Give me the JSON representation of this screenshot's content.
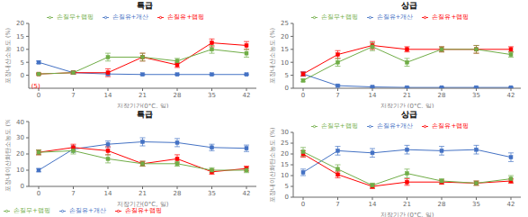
{
  "chart_data": [
    {
      "type": "line",
      "title": "특급",
      "x_label": "저장기간(0°C, 일)",
      "y_label": "포장내산소농도 (%)",
      "x": [
        0,
        7,
        14,
        21,
        28,
        35,
        42
      ],
      "xlim": [
        -2,
        44
      ],
      "xticks": [
        0,
        7,
        14,
        21,
        28,
        35,
        42
      ],
      "ylim": [
        -5,
        20
      ],
      "yticks": [
        0,
        5,
        10,
        15,
        20
      ],
      "grid": false,
      "legend": "upper center",
      "marker": "square",
      "annotations": [
        {
          "text": "(5)",
          "x": -1.5,
          "y": -4,
          "color": "#FF0000"
        }
      ],
      "series": [
        {
          "name": "손질유+개산",
          "color": "#4472C4",
          "values": [
            5,
            1,
            0.5,
            0.3,
            0.3,
            0.3,
            0.3
          ],
          "yerr": [
            0.5,
            0.5,
            0.3,
            0.2,
            0.2,
            0.2,
            0.2
          ]
        },
        {
          "name": "손질유+랩핑",
          "color": "#FF0000",
          "values": [
            0.5,
            1,
            1,
            7,
            4,
            12.5,
            11.5
          ],
          "yerr": [
            0.3,
            0.5,
            1.5,
            1.5,
            1.0,
            1.5,
            1.5
          ]
        },
        {
          "name": "손질무+랩핑",
          "color": "#70AD47",
          "values": [
            0.5,
            1,
            7,
            7,
            5.5,
            10,
            8.5
          ],
          "yerr": [
            0.3,
            0.5,
            1.5,
            1.5,
            1.0,
            1.5,
            1.5
          ]
        }
      ]
    },
    {
      "type": "line",
      "title": "상급",
      "x_label": "저장기간 (0°C, 일)",
      "y_label": "포장내산소농도 (%)",
      "x": [
        0,
        7,
        14,
        21,
        28,
        35,
        42
      ],
      "xlim": [
        -2,
        44
      ],
      "xticks": [
        0,
        7,
        14,
        21,
        28,
        35,
        42
      ],
      "ylim": [
        0,
        25
      ],
      "yticks": [
        0,
        5,
        10,
        15,
        20,
        25
      ],
      "grid": false,
      "legend": "upper center",
      "marker": "square",
      "series": [
        {
          "name": "손질유+개산",
          "color": "#4472C4",
          "values": [
            5.5,
            1,
            0.5,
            0.3,
            0.3,
            0.3,
            0.3
          ],
          "yerr": [
            0.8,
            0.3,
            0.2,
            0.2,
            0.2,
            0.2,
            0.2
          ]
        },
        {
          "name": "손질유+랩핑",
          "color": "#FF0000",
          "values": [
            5.5,
            13,
            16.5,
            15,
            15,
            15,
            15
          ],
          "yerr": [
            0.8,
            1.5,
            1.5,
            1.0,
            1.0,
            1.5,
            1.0
          ]
        },
        {
          "name": "손질무+랩핑",
          "color": "#70AD47",
          "values": [
            3,
            10,
            16,
            10,
            15,
            15,
            13
          ],
          "yerr": [
            0.5,
            1.5,
            1.5,
            1.5,
            1.0,
            1.5,
            1.0
          ]
        }
      ]
    },
    {
      "type": "line",
      "title": "특급",
      "x_label": "저장기간(0°C, 일)",
      "y_label": "포장내이산화탄소농도 (%)",
      "x": [
        0,
        7,
        14,
        21,
        28,
        35,
        42
      ],
      "xlim": [
        -2,
        44
      ],
      "xticks": [
        0,
        7,
        14,
        21,
        28,
        35,
        42
      ],
      "ylim": [
        0,
        40
      ],
      "yticks": [
        0,
        10,
        20,
        30,
        40
      ],
      "grid": false,
      "legend": "lower left",
      "marker": "square",
      "series": [
        {
          "name": "손질유+개산",
          "color": "#4472C4",
          "values": [
            10,
            23,
            26,
            27.5,
            27,
            24,
            23.5
          ],
          "yerr": [
            1.0,
            2.0,
            2.0,
            2.5,
            2.5,
            2.0,
            2.0
          ]
        },
        {
          "name": "손질유+랩핑",
          "color": "#FF0000",
          "values": [
            21,
            24,
            22,
            14,
            17,
            9,
            11
          ],
          "yerr": [
            1.5,
            2.0,
            2.5,
            1.5,
            2.5,
            1.5,
            1.5
          ]
        },
        {
          "name": "손질무+랩핑",
          "color": "#70AD47",
          "values": [
            21,
            22,
            17,
            14,
            14,
            10,
            10
          ],
          "yerr": [
            1.5,
            2.0,
            2.5,
            1.5,
            1.5,
            1.5,
            1.5
          ]
        }
      ]
    },
    {
      "type": "line",
      "title": "상급",
      "x_label": "저장기간 (0°C, 일)",
      "y_label": "포장내이산화탄소농도 (%)",
      "x": [
        0,
        7,
        14,
        21,
        28,
        35,
        42
      ],
      "xlim": [
        -2,
        44
      ],
      "xticks": [
        0,
        7,
        14,
        21,
        28,
        35,
        42
      ],
      "ylim": [
        0,
        30
      ],
      "yticks": [
        0,
        5,
        10,
        15,
        20,
        25,
        30
      ],
      "grid": false,
      "legend": "upper center",
      "marker": "square",
      "series": [
        {
          "name": "손질유+개산",
          "color": "#4472C4",
          "values": [
            11.5,
            21.5,
            20.5,
            22,
            21.5,
            22,
            18.5
          ],
          "yerr": [
            1.5,
            2.0,
            2.0,
            2.0,
            2.0,
            2.0,
            2.0
          ]
        },
        {
          "name": "손질유+랩핑",
          "color": "#FF0000",
          "values": [
            20,
            10.5,
            5,
            7,
            7,
            6.5,
            7.5
          ],
          "yerr": [
            1.5,
            1.5,
            1.0,
            1.5,
            1.0,
            1.0,
            1.0
          ]
        },
        {
          "name": "손질무+랩핑",
          "color": "#70AD47",
          "values": [
            21,
            13,
            5.5,
            11,
            7.5,
            6.5,
            8.5
          ],
          "yerr": [
            2.0,
            2.0,
            1.0,
            2.0,
            1.0,
            1.0,
            1.5
          ]
        }
      ]
    }
  ]
}
